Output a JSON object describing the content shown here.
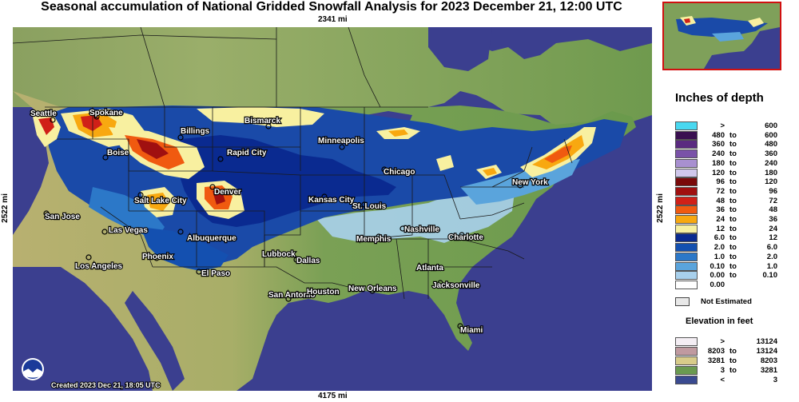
{
  "title": "Seasonal accumulation of National Gridded Snowfall Analysis for 2023 December 21, 12:00 UTC",
  "distances": {
    "top": "2341 mi",
    "bottom": "4175 mi",
    "left": "2522 mi",
    "right": "2522 mi"
  },
  "created": "Created 2023 Dec 21, 18:05 UTC",
  "cities": [
    "Seattle",
    "Spokane",
    "Billings",
    "Bismarck",
    "Minneapolis",
    "Rapid City",
    "Boise",
    "Chicago",
    "Denver",
    "Salt Lake City",
    "Kansas City",
    "St. Louis",
    "New York",
    "San Jose",
    "Las Vegas",
    "Albuquerque",
    "Nashville",
    "Memphis",
    "Charlotte",
    "Phoenix",
    "Lubbock",
    "Dallas",
    "Los Angeles",
    "El Paso",
    "Atlanta",
    "Jacksonville",
    "San Antonio",
    "Houston",
    "New Orleans",
    "Miami"
  ],
  "legend": {
    "title": "Inches of depth",
    "rows": [
      {
        "lo": ">",
        "to": "",
        "hi": "600",
        "color": "#48d8f0"
      },
      {
        "lo": "480",
        "to": "to",
        "hi": "600",
        "color": "#3a1050"
      },
      {
        "lo": "360",
        "to": "to",
        "hi": "480",
        "color": "#5a2a80"
      },
      {
        "lo": "240",
        "to": "to",
        "hi": "360",
        "color": "#7a52a8"
      },
      {
        "lo": "180",
        "to": "to",
        "hi": "240",
        "color": "#a890d0"
      },
      {
        "lo": "120",
        "to": "to",
        "hi": "180",
        "color": "#d0c8ec"
      },
      {
        "lo": "96",
        "to": "to",
        "hi": "120",
        "color": "#7a0a0a"
      },
      {
        "lo": "72",
        "to": "to",
        "hi": "96",
        "color": "#a01010"
      },
      {
        "lo": "48",
        "to": "to",
        "hi": "72",
        "color": "#d02018"
      },
      {
        "lo": "36",
        "to": "to",
        "hi": "48",
        "color": "#f05a10"
      },
      {
        "lo": "24",
        "to": "to",
        "hi": "36",
        "color": "#f8a810"
      },
      {
        "lo": "12",
        "to": "to",
        "hi": "24",
        "color": "#f8f0a0"
      },
      {
        "lo": "6.0",
        "to": "to",
        "hi": "12",
        "color": "#0a2a90"
      },
      {
        "lo": "2.0",
        "to": "to",
        "hi": "6.0",
        "color": "#1450b0"
      },
      {
        "lo": "1.0",
        "to": "to",
        "hi": "2.0",
        "color": "#2c78c8"
      },
      {
        "lo": "0.10",
        "to": "to",
        "hi": "1.0",
        "color": "#5aa4dc"
      },
      {
        "lo": "0.00",
        "to": "to",
        "hi": "0.10",
        "color": "#a8d0ec"
      },
      {
        "lo": "0.00",
        "to": "",
        "hi": "",
        "color": "#ffffff"
      }
    ],
    "not_estimated": "Not Estimated"
  },
  "elevation": {
    "title": "Elevation in feet",
    "rows": [
      {
        "lo": ">",
        "to": "",
        "hi": "13124",
        "color": "#f4eef4"
      },
      {
        "lo": "8203",
        "to": "to",
        "hi": "13124",
        "color": "#c09aa0"
      },
      {
        "lo": "3281",
        "to": "to",
        "hi": "8203",
        "color": "#d8cc8a"
      },
      {
        "lo": "3",
        "to": "to",
        "hi": "3281",
        "color": "#6a9a50"
      },
      {
        "lo": "<",
        "to": "",
        "hi": "3",
        "color": "#3a4a90"
      }
    ]
  },
  "colors": {
    "ocean": "#3b3f8f",
    "land_low": "#6f9a4e",
    "land_mid": "#a9b56a",
    "land_high": "#d4c48a",
    "inset_border": "#d01010"
  }
}
